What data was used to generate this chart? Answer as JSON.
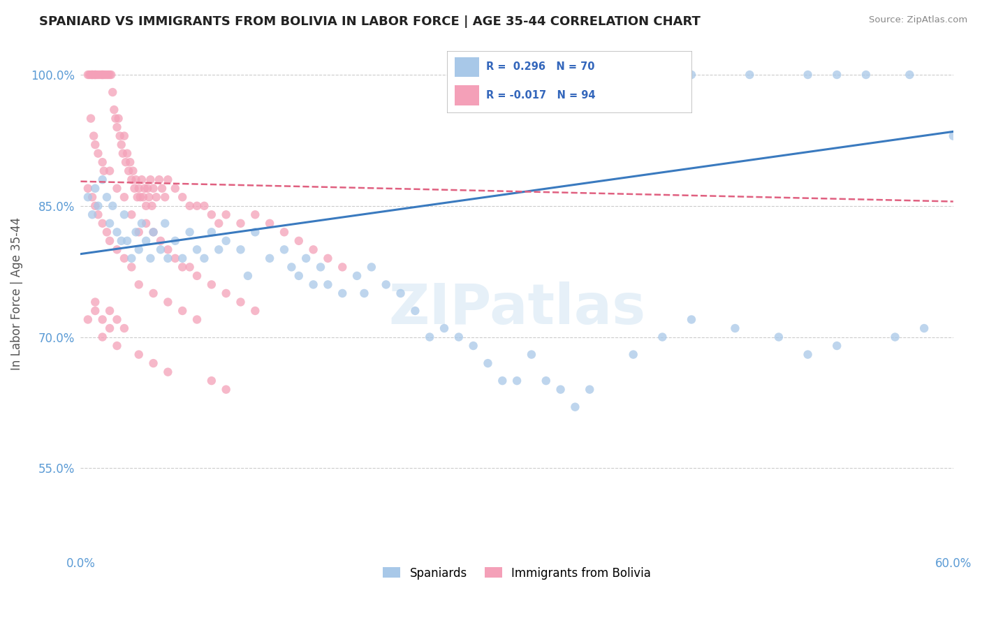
{
  "title": "SPANIARD VS IMMIGRANTS FROM BOLIVIA IN LABOR FORCE | AGE 35-44 CORRELATION CHART",
  "source": "Source: ZipAtlas.com",
  "ylabel": "In Labor Force | Age 35-44",
  "x_min": 0.0,
  "x_max": 0.6,
  "y_min": 0.455,
  "y_max": 1.045,
  "x_ticks": [
    0.0,
    0.1,
    0.2,
    0.3,
    0.4,
    0.5,
    0.6
  ],
  "x_tick_labels": [
    "0.0%",
    "",
    "",
    "",
    "",
    "",
    "60.0%"
  ],
  "y_ticks": [
    0.55,
    0.7,
    0.85,
    1.0
  ],
  "y_tick_labels": [
    "55.0%",
    "70.0%",
    "85.0%",
    "100.0%"
  ],
  "watermark": "ZIPatlas",
  "color_blue": "#a8c8e8",
  "color_pink": "#f4a0b8",
  "color_blue_line": "#3a7abf",
  "color_pink_line": "#e06080",
  "blue_line_x0": 0.0,
  "blue_line_y0": 0.795,
  "blue_line_x1": 0.6,
  "blue_line_y1": 0.935,
  "pink_line_x0": 0.0,
  "pink_line_y0": 0.878,
  "pink_line_x1": 0.6,
  "pink_line_y1": 0.855,
  "spaniards_x": [
    0.005,
    0.008,
    0.01,
    0.012,
    0.015,
    0.018,
    0.02,
    0.022,
    0.025,
    0.028,
    0.03,
    0.032,
    0.035,
    0.038,
    0.04,
    0.042,
    0.045,
    0.048,
    0.05,
    0.055,
    0.058,
    0.06,
    0.065,
    0.07,
    0.075,
    0.08,
    0.085,
    0.09,
    0.095,
    0.1,
    0.11,
    0.115,
    0.12,
    0.13,
    0.14,
    0.145,
    0.15,
    0.155,
    0.16,
    0.165,
    0.17,
    0.18,
    0.19,
    0.195,
    0.2,
    0.21,
    0.22,
    0.23,
    0.24,
    0.25,
    0.26,
    0.27,
    0.28,
    0.29,
    0.3,
    0.31,
    0.32,
    0.33,
    0.34,
    0.35,
    0.38,
    0.4,
    0.42,
    0.45,
    0.48,
    0.5,
    0.52,
    0.56,
    0.58,
    0.6
  ],
  "spaniards_y": [
    0.86,
    0.84,
    0.87,
    0.85,
    0.88,
    0.86,
    0.83,
    0.85,
    0.82,
    0.81,
    0.84,
    0.81,
    0.79,
    0.82,
    0.8,
    0.83,
    0.81,
    0.79,
    0.82,
    0.8,
    0.83,
    0.79,
    0.81,
    0.79,
    0.82,
    0.8,
    0.79,
    0.82,
    0.8,
    0.81,
    0.8,
    0.77,
    0.82,
    0.79,
    0.8,
    0.78,
    0.77,
    0.79,
    0.76,
    0.78,
    0.76,
    0.75,
    0.77,
    0.75,
    0.78,
    0.76,
    0.75,
    0.73,
    0.7,
    0.71,
    0.7,
    0.69,
    0.67,
    0.65,
    0.65,
    0.68,
    0.65,
    0.64,
    0.62,
    0.64,
    0.68,
    0.7,
    0.72,
    0.71,
    0.7,
    0.68,
    0.69,
    0.7,
    0.71,
    0.93
  ],
  "spaniards_y_top": [
    1.0,
    1.0,
    1.0,
    1.0,
    1.0,
    1.0,
    1.0,
    1.0
  ],
  "spaniards_x_top": [
    0.3,
    0.38,
    0.42,
    0.46,
    0.5,
    0.52,
    0.54,
    0.57
  ],
  "bolivia_x": [
    0.005,
    0.006,
    0.007,
    0.008,
    0.008,
    0.009,
    0.01,
    0.01,
    0.011,
    0.012,
    0.013,
    0.014,
    0.015,
    0.015,
    0.016,
    0.017,
    0.018,
    0.019,
    0.02,
    0.021,
    0.022,
    0.023,
    0.024,
    0.025,
    0.026,
    0.027,
    0.028,
    0.029,
    0.03,
    0.031,
    0.032,
    0.033,
    0.034,
    0.035,
    0.036,
    0.037,
    0.038,
    0.039,
    0.04,
    0.041,
    0.042,
    0.043,
    0.044,
    0.045,
    0.046,
    0.047,
    0.048,
    0.049,
    0.05,
    0.052,
    0.054,
    0.056,
    0.058,
    0.06,
    0.065,
    0.07,
    0.075,
    0.08,
    0.085,
    0.09,
    0.095,
    0.1,
    0.11,
    0.12,
    0.13,
    0.14,
    0.15,
    0.16,
    0.17,
    0.18,
    0.01,
    0.015,
    0.02,
    0.025,
    0.03,
    0.035,
    0.04,
    0.045,
    0.05,
    0.055,
    0.06,
    0.065,
    0.07,
    0.075,
    0.08,
    0.09,
    0.1,
    0.11,
    0.12,
    0.005,
    0.007,
    0.009,
    0.012,
    0.016
  ],
  "bolivia_y": [
    1.0,
    1.0,
    1.0,
    1.0,
    1.0,
    1.0,
    1.0,
    1.0,
    1.0,
    1.0,
    1.0,
    1.0,
    1.0,
    1.0,
    1.0,
    1.0,
    1.0,
    1.0,
    1.0,
    1.0,
    0.98,
    0.96,
    0.95,
    0.94,
    0.95,
    0.93,
    0.92,
    0.91,
    0.93,
    0.9,
    0.91,
    0.89,
    0.9,
    0.88,
    0.89,
    0.87,
    0.88,
    0.86,
    0.87,
    0.86,
    0.88,
    0.86,
    0.87,
    0.85,
    0.87,
    0.86,
    0.88,
    0.85,
    0.87,
    0.86,
    0.88,
    0.87,
    0.86,
    0.88,
    0.87,
    0.86,
    0.85,
    0.85,
    0.85,
    0.84,
    0.83,
    0.84,
    0.83,
    0.84,
    0.83,
    0.82,
    0.81,
    0.8,
    0.79,
    0.78,
    0.92,
    0.9,
    0.89,
    0.87,
    0.86,
    0.84,
    0.82,
    0.83,
    0.82,
    0.81,
    0.8,
    0.79,
    0.78,
    0.78,
    0.77,
    0.76,
    0.75,
    0.74,
    0.73,
    0.72,
    0.95,
    0.93,
    0.91,
    0.89
  ],
  "bolivia_extra_x": [
    0.005,
    0.008,
    0.01,
    0.012,
    0.015,
    0.018,
    0.02,
    0.025,
    0.03,
    0.035,
    0.04,
    0.05,
    0.06,
    0.07,
    0.08,
    0.01,
    0.015,
    0.02
  ],
  "bolivia_extra_y": [
    0.87,
    0.86,
    0.85,
    0.84,
    0.83,
    0.82,
    0.81,
    0.8,
    0.79,
    0.78,
    0.76,
    0.75,
    0.74,
    0.73,
    0.72,
    0.73,
    0.72,
    0.71
  ],
  "bolivia_low_x": [
    0.01,
    0.02,
    0.025,
    0.03,
    0.015,
    0.025,
    0.04,
    0.05,
    0.06,
    0.09,
    0.1
  ],
  "bolivia_low_y": [
    0.74,
    0.73,
    0.72,
    0.71,
    0.7,
    0.69,
    0.68,
    0.67,
    0.66,
    0.65,
    0.64
  ]
}
